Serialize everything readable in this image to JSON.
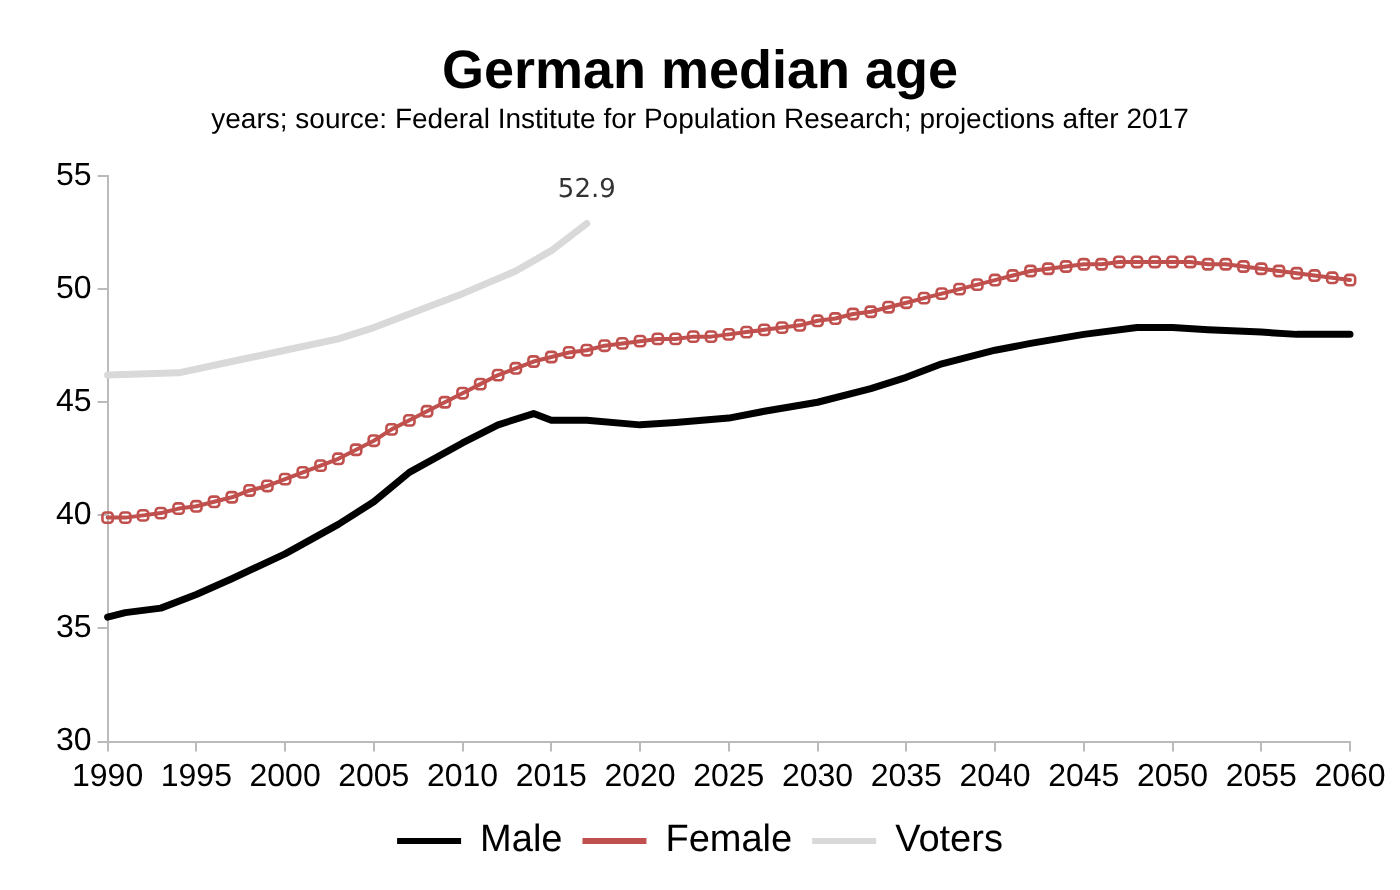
{
  "chart_data": {
    "type": "line",
    "title": "German median age",
    "subtitle": "years; source: Federal Institute for Population Research; projections after 2017",
    "xlim": [
      1990,
      2060
    ],
    "xticks": [
      1990,
      1995,
      2000,
      2005,
      2010,
      2015,
      2020,
      2025,
      2030,
      2035,
      2040,
      2045,
      2050,
      2055,
      2060
    ],
    "ylim": [
      30,
      55
    ],
    "yticks": [
      30,
      35,
      40,
      45,
      50,
      55
    ],
    "grid": false,
    "legend": "bottom",
    "line_style": "solid",
    "marker": "none",
    "annotations": [
      {
        "text": "52.9",
        "x": 2017,
        "y": 52.9
      }
    ],
    "series": [
      {
        "name": "Male",
        "color": "#000000",
        "x": [
          1990,
          1991,
          1993,
          1995,
          1997,
          2000,
          2003,
          2005,
          2007,
          2010,
          2012,
          2014,
          2015,
          2017,
          2020,
          2022,
          2025,
          2027,
          2030,
          2033,
          2035,
          2037,
          2040,
          2042,
          2045,
          2048,
          2050,
          2052,
          2055,
          2057,
          2060
        ],
        "values": [
          35.5,
          35.7,
          35.9,
          36.5,
          37.2,
          38.3,
          39.6,
          40.6,
          41.9,
          43.2,
          44.0,
          44.5,
          44.2,
          44.2,
          44.0,
          44.1,
          44.3,
          44.6,
          45.0,
          45.6,
          46.1,
          46.7,
          47.3,
          47.6,
          48.0,
          48.3,
          48.3,
          48.2,
          48.1,
          48.0,
          48.0
        ]
      },
      {
        "name": "Female",
        "color": "#c0504d",
        "marker": "square",
        "x": [
          1990,
          1991,
          1992,
          1993,
          1994,
          1995,
          1996,
          1997,
          1998,
          1999,
          2000,
          2001,
          2002,
          2003,
          2004,
          2005,
          2006,
          2007,
          2008,
          2009,
          2010,
          2011,
          2012,
          2013,
          2014,
          2015,
          2016,
          2017,
          2018,
          2019,
          2020,
          2021,
          2022,
          2023,
          2024,
          2025,
          2026,
          2027,
          2028,
          2029,
          2030,
          2031,
          2032,
          2033,
          2034,
          2035,
          2036,
          2037,
          2038,
          2039,
          2040,
          2041,
          2042,
          2043,
          2044,
          2045,
          2046,
          2047,
          2048,
          2049,
          2050,
          2051,
          2052,
          2053,
          2054,
          2055,
          2056,
          2057,
          2058,
          2059,
          2060
        ],
        "values": [
          39.9,
          39.9,
          40.0,
          40.1,
          40.3,
          40.4,
          40.6,
          40.8,
          41.1,
          41.3,
          41.6,
          41.9,
          42.2,
          42.5,
          42.9,
          43.3,
          43.8,
          44.2,
          44.6,
          45.0,
          45.4,
          45.8,
          46.2,
          46.5,
          46.8,
          47.0,
          47.2,
          47.3,
          47.5,
          47.6,
          47.7,
          47.8,
          47.8,
          47.9,
          47.9,
          48.0,
          48.1,
          48.2,
          48.3,
          48.4,
          48.6,
          48.7,
          48.9,
          49.0,
          49.2,
          49.4,
          49.6,
          49.8,
          50.0,
          50.2,
          50.4,
          50.6,
          50.8,
          50.9,
          51.0,
          51.1,
          51.1,
          51.2,
          51.2,
          51.2,
          51.2,
          51.2,
          51.1,
          51.1,
          51.0,
          50.9,
          50.8,
          50.7,
          50.6,
          50.5,
          50.4
        ]
      },
      {
        "name": "Voters",
        "color": "#d9d9d9",
        "x": [
          1990,
          1994,
          1997,
          2000,
          2003,
          2005,
          2008,
          2010,
          2013,
          2015,
          2017
        ],
        "values": [
          46.2,
          46.3,
          46.8,
          47.3,
          47.8,
          48.3,
          49.2,
          49.8,
          50.8,
          51.7,
          52.9
        ]
      }
    ]
  }
}
